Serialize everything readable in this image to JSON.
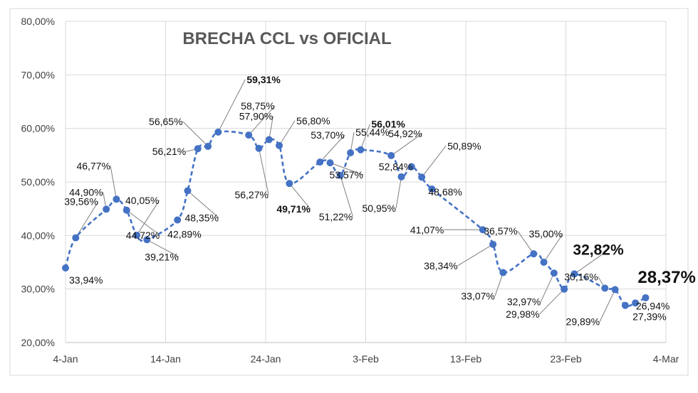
{
  "chart_data": {
    "type": "line",
    "title": "BRECHA CCL vs OFICIAL",
    "xlabel": "",
    "ylabel": "",
    "ylim": [
      0.2,
      0.8
    ],
    "xlim": [
      "2021-01-04",
      "2021-03-04"
    ],
    "x_ticks": [
      "4-Jan",
      "14-Jan",
      "24-Jan",
      "3-Feb",
      "13-Feb",
      "23-Feb",
      "4-Mar"
    ],
    "y_ticks": [
      "20,00%",
      "30,00%",
      "40,00%",
      "50,00%",
      "60,00%",
      "70,00%",
      "80,00%"
    ],
    "grid": true,
    "legend": "none",
    "line_color": "#4472C4",
    "line_style": "dashed",
    "series": [
      {
        "points": [
          {
            "x": "2021-01-04",
            "y": 0.3394,
            "label": "33,94%"
          },
          {
            "x": "2021-01-05",
            "y": 0.3956,
            "label": "39,56%"
          },
          {
            "x": "2021-01-08",
            "y": 0.449,
            "label": "44,90%"
          },
          {
            "x": "2021-01-09",
            "y": 0.4677,
            "label": "46,77%"
          },
          {
            "x": "2021-01-10",
            "y": 0.4472,
            "label": "44,72%"
          },
          {
            "x": "2021-01-11",
            "y": 0.4005,
            "label": "40,05%"
          },
          {
            "x": "2021-01-12",
            "y": 0.3921,
            "label": "39,21%"
          },
          {
            "x": "2021-01-15",
            "y": 0.4289,
            "label": "42,89%"
          },
          {
            "x": "2021-01-16",
            "y": 0.4835,
            "label": "48,35%"
          },
          {
            "x": "2021-01-17",
            "y": 0.5621,
            "label": "56,21%"
          },
          {
            "x": "2021-01-18",
            "y": 0.5665,
            "label": "56,65%"
          },
          {
            "x": "2021-01-19",
            "y": 0.5931,
            "label": "59,31%"
          },
          {
            "x": "2021-01-22",
            "y": 0.5875,
            "label": "58,75%"
          },
          {
            "x": "2021-01-23",
            "y": 0.5627,
            "label": "56,27%"
          },
          {
            "x": "2021-01-24",
            "y": 0.579,
            "label": "57,90%"
          },
          {
            "x": "2021-01-25",
            "y": 0.568,
            "label": "56,80%"
          },
          {
            "x": "2021-01-26",
            "y": 0.4971,
            "label": "49,71%"
          },
          {
            "x": "2021-01-29",
            "y": 0.537,
            "label": "53,70%"
          },
          {
            "x": "2021-01-30",
            "y": 0.5357,
            "label": "53,57%"
          },
          {
            "x": "2021-01-31",
            "y": 0.5122,
            "label": "51,22%"
          },
          {
            "x": "2021-02-01",
            "y": 0.5544,
            "label": "55,44%"
          },
          {
            "x": "2021-02-02",
            "y": 0.5601,
            "label": "56,01%"
          },
          {
            "x": "2021-02-05",
            "y": 0.5492,
            "label": "54,92%"
          },
          {
            "x": "2021-02-06",
            "y": 0.5095,
            "label": "50,95%"
          },
          {
            "x": "2021-02-07",
            "y": 0.5284,
            "label": "52,84%"
          },
          {
            "x": "2021-02-08",
            "y": 0.5089,
            "label": "50,89%"
          },
          {
            "x": "2021-02-09",
            "y": 0.4868,
            "label": "48,68%"
          },
          {
            "x": "2021-02-14",
            "y": 0.4107,
            "label": "41,07%"
          },
          {
            "x": "2021-02-15",
            "y": 0.3834,
            "label": "38,34%"
          },
          {
            "x": "2021-02-16",
            "y": 0.3307,
            "label": "33,07%"
          },
          {
            "x": "2021-02-19",
            "y": 0.3657,
            "label": "36,57%"
          },
          {
            "x": "2021-02-20",
            "y": 0.35,
            "label": "35,00%"
          },
          {
            "x": "2021-02-21",
            "y": 0.3297,
            "label": "32,97%"
          },
          {
            "x": "2021-02-22",
            "y": 0.2998,
            "label": "29,98%"
          },
          {
            "x": "2021-02-23",
            "y": 0.3282,
            "label": "32,82%"
          },
          {
            "x": "2021-02-26",
            "y": 0.3016,
            "label": "30,16%"
          },
          {
            "x": "2021-02-27",
            "y": 0.2989,
            "label": "29,89%"
          },
          {
            "x": "2021-02-28",
            "y": 0.2694,
            "label": "26,94%"
          },
          {
            "x": "2021-03-01",
            "y": 0.2739,
            "label": "27,39%"
          },
          {
            "x": "2021-03-02",
            "y": 0.2837,
            "label": "28,37%"
          }
        ]
      }
    ]
  }
}
